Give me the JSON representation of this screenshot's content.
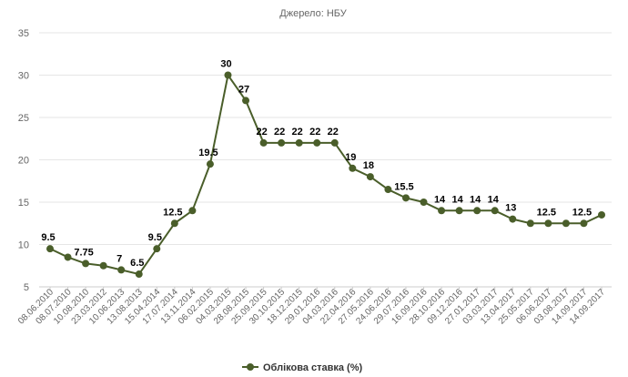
{
  "chart_data": {
    "type": "line",
    "subtitle": "Джерело: НБУ",
    "xlabel": "",
    "ylabel": "",
    "ylim": [
      5,
      35
    ],
    "yticks": [
      5,
      10,
      15,
      20,
      25,
      30,
      35
    ],
    "grid": true,
    "legend_position": "bottom",
    "series_color": "#4a5e2a",
    "x": [
      "08.06.2010",
      "08.07.2010",
      "10.08.2010",
      "23.03.2012",
      "10.06.2013",
      "13.08.2013",
      "15.04.2014",
      "17.07.2014",
      "13.11.2014",
      "06.02.2015",
      "04.03.2015",
      "28.08.2015",
      "25.09.2015",
      "30.10.2015",
      "18.12.2015",
      "29.01.2016",
      "04.03.2016",
      "22.04.2016",
      "27.05.2016",
      "24.06.2016",
      "29.07.2016",
      "16.09.2016",
      "28.10.2016",
      "09.12.2016",
      "27.01.2017",
      "03.03.2017",
      "13.04.2017",
      "25.05.2017",
      "06.06.2017",
      "03.08.2017",
      "14.09.2017",
      "14.09.2017"
    ],
    "series": [
      {
        "name": "Облікова ставка (%)",
        "values": [
          9.5,
          8.5,
          7.75,
          7.5,
          7,
          6.5,
          9.5,
          12.5,
          14,
          19.5,
          30,
          27,
          22,
          22,
          22,
          22,
          22,
          19,
          18,
          16.5,
          15.5,
          15,
          14,
          14,
          14,
          14,
          13,
          12.5,
          12.5,
          12.5,
          12.5,
          13.5
        ],
        "labels": [
          "9.5",
          "",
          "7.75",
          "",
          "7",
          "6.5",
          "9.5",
          "12.5",
          "",
          "19.5",
          "30",
          "27",
          "22",
          "22",
          "22",
          "22",
          "22",
          "19",
          "18",
          "",
          "15.5",
          "",
          "14",
          "14",
          "14",
          "14",
          "13",
          "",
          "12.5",
          "",
          "12.5",
          ""
        ]
      }
    ]
  }
}
